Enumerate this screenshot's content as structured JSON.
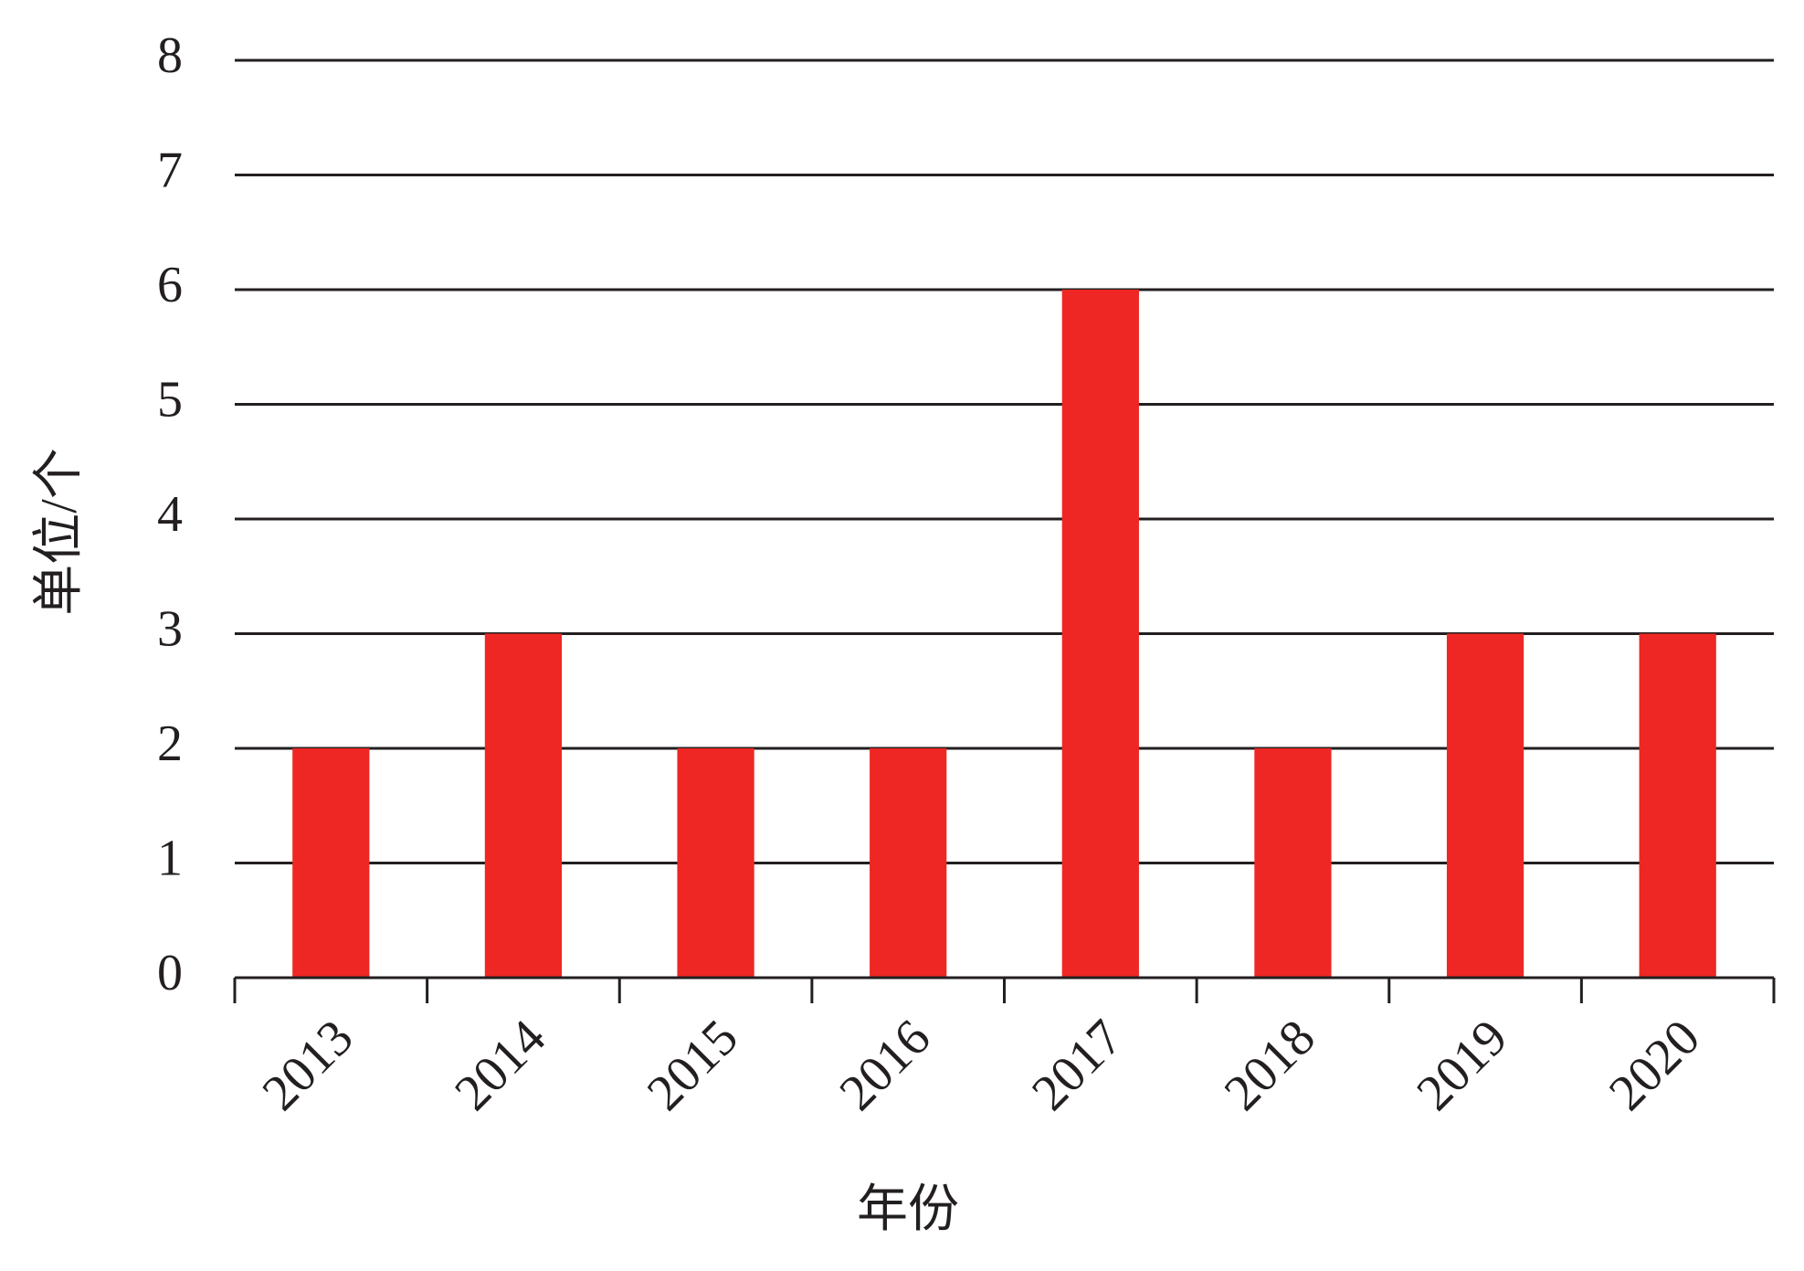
{
  "chart_data": {
    "type": "bar",
    "x_label": "年份",
    "y_label": "单位/个",
    "categories": [
      "2013",
      "2014",
      "2015",
      "2016",
      "2017",
      "2018",
      "2019",
      "2020"
    ],
    "values": [
      2,
      3,
      2,
      2,
      6,
      2,
      3,
      3
    ],
    "color": "#ee2724",
    "ylim": [
      0,
      8
    ],
    "yticks": [
      0,
      1,
      2,
      3,
      4,
      5,
      6,
      7,
      8
    ],
    "grid": true
  }
}
